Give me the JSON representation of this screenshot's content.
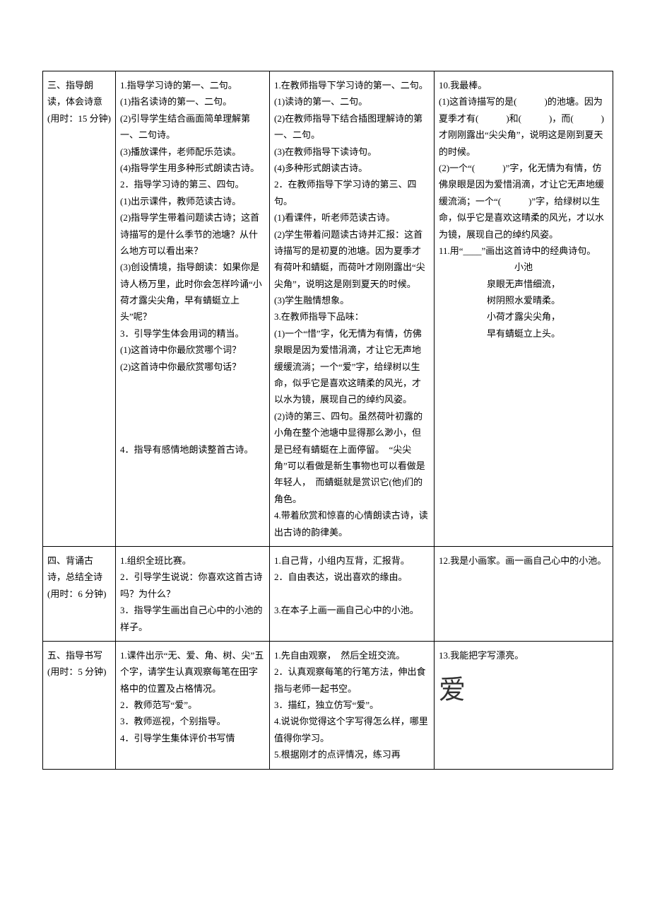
{
  "rows": [
    {
      "col1": "三、指导朗读，体会诗意(用时：15 分钟)",
      "col2": "1.指导学习诗的第一、二句。\n(1)指名读诗的第一、二句。\n(2)引导学生结合画面简单理解第一、二句诗。\n(3)播放课件，老师配乐范读。\n(4)指导学生用多种形式朗读古诗。\n2．指导学习诗的第三、四句。\n(1)出示课件，教师范读古诗。\n(2)指导学生带着问题读古诗；这首诗描写的是什么季节的池塘？从什么地方可以看出来？\n(3)创设情境，指导朗读：如果你是诗人杨万里，此时你会怎样吟诵“小荷才露尖尖角，早有蜻蜓立上头”呢？\n3．引导学生体会用词的精当。\n(1)这首诗中你最欣赏哪个词？\n(2)这首诗中你最欣赏哪句话？\n\n\n\n\n4．指导有感情地朗读整首古诗。",
      "col3": "1.在教师指导下学习诗的第一、二句。\n(1)读诗的第一、二句。\n(2)在教师指导下结合插图理解诗的第一、二句。\n(3)在教师指导下读诗句。\n(4)多种形式朗读古诗。\n2．在教师指导下学习诗的第三、四句。\n(1)看课件，听老师范读古诗。\n(2)学生带着问题读古诗并汇报：这首诗描写的是初夏的池塘。因为夏季才有荷叶和蜻蜓，而荷叶才刚刚露出“尖尖角”，说明这是刚到夏天的时候。\n(3)学生融情想象。\n3.在教师指导下品味：\n(1)一个“惜”字，化无情为有情，仿佛泉眼是因为爱惜涓滴，才让它无声地缓缓流淌；一个“爱”字，给绿树以生命，似乎它是喜欢这晴柔的风光，才以水为镜，展现自己的绰约风姿。\n(2)诗的第三、四句。虽然荷叶初露的小角在整个池塘中显得那么渺小，但是已经有蜻蜓在上面停留。　“尖尖角”可以看做是新生事物也可以看做是年轻人，　而蜻蜓就是赏识它(他)们的角色。\n4.带着欣赏和惊喜的心情朗读古诗，读出古诗的韵律美。",
      "col4": {
        "lines": [
          "10.我最棒。",
          "(1)这首诗描写的是(　　　)的池塘。因为夏季才有(　　　)和(　　　)，而(　　　)才刚刚露出“尖尖角”，说明这是刚到夏天的时候。",
          "(2)一个“(　　　)”字，化无情为有情，仿佛泉眼是因为爱惜涓滴，才让它无声地缓缓流淌；一个“(　　　)”字，给绿树以生命，似乎它是喜欢这晴柔的风光，才以水为镜，展现自己的绰约风姿。",
          "11.用“____”画出这首诗中的经典诗句。"
        ],
        "poem_title": "小池",
        "poem_lines": [
          "泉眼无声惜细流，",
          "树阴照水爱晴柔。",
          "小荷才露尖尖角，",
          "早有蜻蜓立上头。"
        ]
      }
    },
    {
      "col1": "四、背诵古诗，总结全诗(用时：6 分钟)",
      "col2": "1.组织全班比赛。\n2．引导学生说说：你喜欢这首古诗吗？为什么？\n3．指导学生画出自己心中的小池的样子。",
      "col3": "1.自己背，小组内互背，汇报背。\n2．自由表达，说出喜欢的缘由。\n\n3.在本子上画一画自己心中的小池。",
      "col4": "12.我是小画家。画一画自己心中的小池。"
    },
    {
      "col1": "五、指导书写(用时：5 分钟)",
      "col2": "1.课件出示“无、爱、角、树、尖”五个字，请学生认真观察每笔在田字格中的位置及占格情况。\n2．教师范写“爱”。\n3．教师巡视，个别指导。\n4．引导学生集体评价书写情",
      "col3": "1.先自由观察，　然后全班交流。\n2．认真观察每笔的行笔方法，伸出食指与老师一起书空。\n3．描红，独立仿写“爱”。\n4.说说你觉得这个字写得怎么样，哪里值得你学习。\n5.根据刚才的点评情况，练习再",
      "col4": {
        "line": "13.我能把字写漂亮。",
        "big_char": "爱"
      }
    }
  ]
}
